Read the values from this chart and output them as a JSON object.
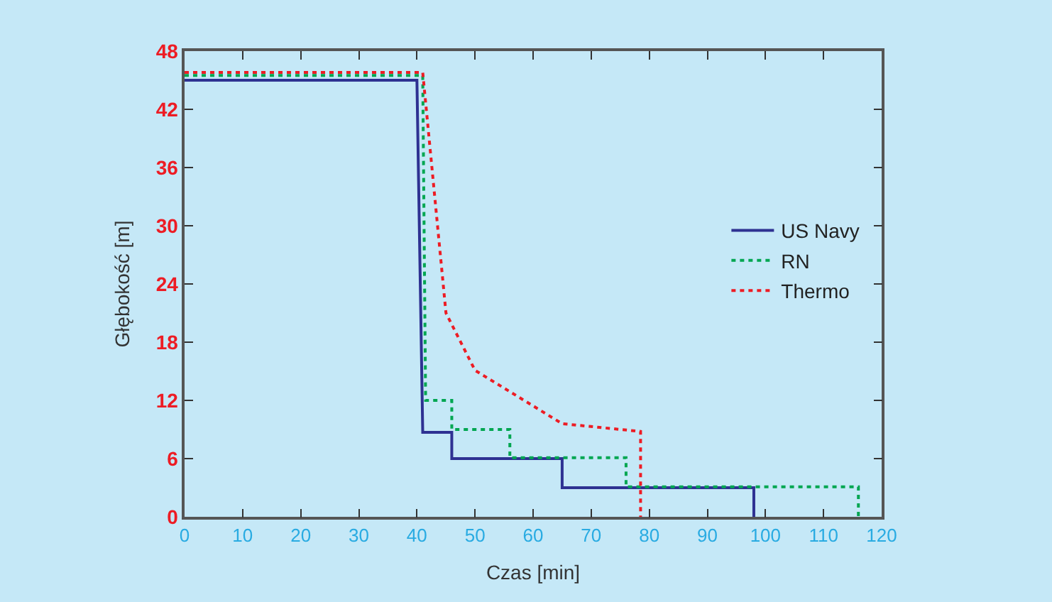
{
  "chart_data": {
    "type": "line",
    "xlabel": "Czas [min]",
    "ylabel": "Głębokość [m]",
    "xlim": [
      0,
      120
    ],
    "xticks": [
      0,
      10,
      20,
      30,
      40,
      50,
      60,
      70,
      80,
      90,
      100,
      110,
      120
    ],
    "ylim": [
      0,
      48
    ],
    "yticks": [
      0,
      6,
      12,
      18,
      24,
      30,
      36,
      42,
      48
    ],
    "grid": false,
    "legend": "right",
    "marker": "none",
    "series": [
      {
        "name": "US Navy",
        "color": "#2e3192",
        "line_style": "solid",
        "x": [
          0,
          40,
          41,
          46,
          46,
          65,
          65,
          98,
          98
        ],
        "values": [
          45,
          45,
          8.7,
          8.7,
          6,
          6,
          3,
          3,
          0
        ]
      },
      {
        "name": "RN",
        "color": "#00a651",
        "line_style": "dotted",
        "x": [
          0,
          41,
          41.5,
          46,
          46,
          56,
          56,
          76,
          76,
          116,
          116
        ],
        "values": [
          45.5,
          45.5,
          12,
          12,
          9,
          9,
          6.1,
          6.1,
          3.1,
          3.1,
          0
        ]
      },
      {
        "name": "Thermo",
        "color": "#ed1c24",
        "line_style": "dotted",
        "x": [
          0,
          41,
          45,
          50,
          65,
          78.5,
          78.5
        ],
        "values": [
          45.8,
          45.8,
          21,
          15.1,
          9.6,
          8.8,
          0
        ]
      }
    ]
  }
}
